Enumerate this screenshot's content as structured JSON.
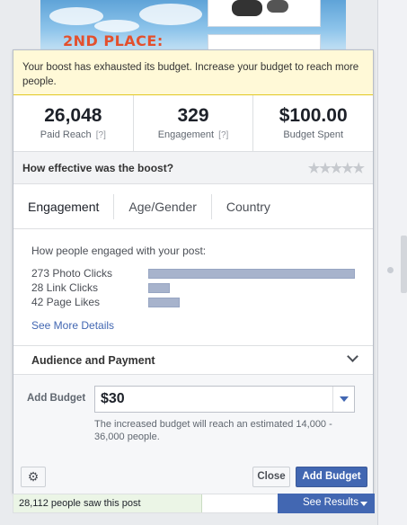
{
  "post_image": {
    "text": "2ND PLACE:"
  },
  "alert": {
    "message": "Your boost has exhausted its budget. Increase your budget to reach more people."
  },
  "stats": [
    {
      "value": "26,048",
      "label": "Paid Reach",
      "help": "[?]"
    },
    {
      "value": "329",
      "label": "Engagement",
      "help": "[?]"
    },
    {
      "value": "$100.00",
      "label": "Budget Spent",
      "help": ""
    }
  ],
  "effectiveness": {
    "question": "How effective was the boost?",
    "stars": "★★★★★"
  },
  "tabs": [
    {
      "label": "Engagement",
      "active": true
    },
    {
      "label": "Age/Gender",
      "active": false
    },
    {
      "label": "Country",
      "active": false
    }
  ],
  "engagement": {
    "heading": "How people engaged with your post:",
    "metrics": [
      {
        "label": "273 Photo Clicks",
        "count": 273
      },
      {
        "label": "28 Link Clicks",
        "count": 28
      },
      {
        "label": "42 Page Likes",
        "count": 42
      }
    ],
    "see_more": "See More Details"
  },
  "audience": {
    "title": "Audience and Payment"
  },
  "budget": {
    "label": "Add Budget",
    "selected": "$30",
    "note": "The increased budget will reach an estimated 14,000 - 36,000 people."
  },
  "footer": {
    "close_label": "Close",
    "add_label": "Add Budget"
  },
  "bottom": {
    "saw_text": "28,112 people saw this post",
    "results_label": "See Results"
  },
  "colors": {
    "accent": "#4267b2",
    "alert_bg": "#fff9d7",
    "bar": "#a7b3cc"
  }
}
